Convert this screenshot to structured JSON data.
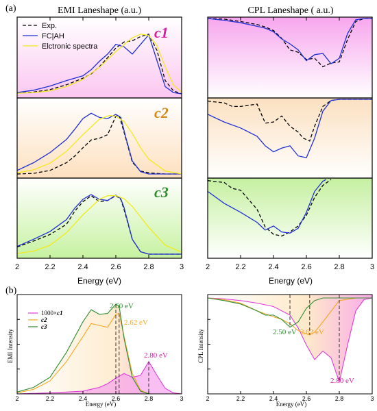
{
  "panel_labels": {
    "a": "(a)",
    "b": "(b)"
  },
  "titles": {
    "emi": "EMI Laneshape (a.u.)",
    "cpl": "CPL Laneshape ( a.u.)"
  },
  "axes": {
    "energy_label": "Energy (eV)",
    "emi_intensity_label": "EMI Intensity",
    "cpl_intensity_label": "CPL Intensity",
    "xticks_top": [
      "2",
      "2.2",
      "2.4",
      "2.6",
      "2.8",
      "3"
    ],
    "xticks_bottom": [
      "2",
      "2.2",
      "2.4",
      "2.6",
      "2.8",
      "3"
    ]
  },
  "legend_a": {
    "exp": "Exp.",
    "fc": "FC|AH",
    "el": "Elctronic spectra"
  },
  "legend_b": {
    "c1": "1000×",
    "c1_suffix": "c1",
    "c2": "c2",
    "c3": "c3"
  },
  "row_labels": {
    "c1": "c1",
    "c2": "c2",
    "c3": "c3"
  },
  "annotations": {
    "emi_c3": "2.60 eV",
    "emi_c2": "2.62 eV",
    "emi_c1": "2.80 eV",
    "cpl_c3": "2.50 eV",
    "cpl_c2": "2.62 eV",
    "cpl_c1": "2.80 eV"
  },
  "colors": {
    "exp": "#000000",
    "fc": "#1f2fd6",
    "el": "#f2ea1c",
    "c1": "#e03ad8",
    "c2": "#f5a623",
    "c3": "#2e8b2e",
    "label_c1": "#d61fa0",
    "label_c2": "#d48a1a",
    "label_c3": "#2e8b2e"
  },
  "chart_data": [
    {
      "type": "line",
      "panel": "a-EMI-c1",
      "xlim": [
        2,
        3
      ],
      "series": [
        {
          "name": "Exp.",
          "x": [
            2.0,
            2.1,
            2.2,
            2.3,
            2.4,
            2.45,
            2.5,
            2.55,
            2.6,
            2.65,
            2.7,
            2.75,
            2.8,
            2.85,
            2.9,
            2.95,
            3.0
          ],
          "y": [
            0.01,
            0.03,
            0.07,
            0.15,
            0.26,
            0.33,
            0.45,
            0.6,
            0.76,
            0.86,
            0.88,
            0.95,
            0.99,
            0.72,
            0.22,
            0.05,
            0.0
          ]
        },
        {
          "name": "FC|AH",
          "x": [
            2.0,
            2.1,
            2.2,
            2.3,
            2.4,
            2.45,
            2.5,
            2.55,
            2.6,
            2.65,
            2.7,
            2.75,
            2.8,
            2.85,
            2.9,
            2.95,
            3.0
          ],
          "y": [
            0.02,
            0.06,
            0.13,
            0.22,
            0.3,
            0.4,
            0.54,
            0.66,
            0.82,
            0.78,
            0.66,
            0.82,
            0.98,
            0.55,
            0.12,
            0.02,
            0.0
          ]
        },
        {
          "name": "Elctronic spectra",
          "x": [
            2.0,
            2.1,
            2.2,
            2.3,
            2.4,
            2.5,
            2.6,
            2.7,
            2.75,
            2.8,
            2.85,
            2.9,
            2.95,
            3.0
          ],
          "y": [
            0.01,
            0.02,
            0.05,
            0.12,
            0.24,
            0.44,
            0.7,
            0.93,
            0.99,
            0.97,
            0.8,
            0.45,
            0.15,
            0.03
          ]
        }
      ]
    },
    {
      "type": "line",
      "panel": "a-EMI-c2",
      "xlim": [
        2,
        3
      ],
      "series": [
        {
          "name": "Exp.",
          "x": [
            2.0,
            2.1,
            2.2,
            2.3,
            2.35,
            2.4,
            2.45,
            2.5,
            2.55,
            2.6,
            2.62,
            2.65,
            2.7,
            2.75,
            2.8,
            2.9,
            3.0
          ],
          "y": [
            0.0,
            0.01,
            0.06,
            0.19,
            0.3,
            0.44,
            0.57,
            0.6,
            0.66,
            0.97,
            0.98,
            0.7,
            0.2,
            0.05,
            0.02,
            0.0,
            0.0
          ]
        },
        {
          "name": "FC|AH",
          "x": [
            2.0,
            2.1,
            2.2,
            2.3,
            2.35,
            2.4,
            2.45,
            2.5,
            2.55,
            2.6,
            2.63,
            2.66,
            2.7,
            2.75,
            2.8,
            2.9,
            3.0
          ],
          "y": [
            0.06,
            0.19,
            0.36,
            0.58,
            0.75,
            0.93,
            1.02,
            0.95,
            0.93,
            1.0,
            0.95,
            0.62,
            0.22,
            0.04,
            0.0,
            0.0,
            0.0
          ]
        },
        {
          "name": "Elctronic spectra",
          "x": [
            2.0,
            2.1,
            2.2,
            2.3,
            2.4,
            2.5,
            2.56,
            2.6,
            2.65,
            2.7,
            2.75,
            2.8,
            2.9,
            3.0
          ],
          "y": [
            0.02,
            0.07,
            0.18,
            0.38,
            0.66,
            0.92,
            0.98,
            0.97,
            0.88,
            0.68,
            0.44,
            0.25,
            0.05,
            0.0
          ]
        }
      ]
    },
    {
      "type": "line",
      "panel": "a-EMI-c3",
      "xlim": [
        2,
        3
      ],
      "series": [
        {
          "name": "Exp.",
          "x": [
            2.0,
            2.1,
            2.2,
            2.3,
            2.35,
            2.4,
            2.45,
            2.5,
            2.55,
            2.6,
            2.63,
            2.65,
            2.7,
            2.75,
            2.8,
            2.9,
            3.0
          ],
          "y": [
            0.12,
            0.22,
            0.33,
            0.5,
            0.72,
            0.88,
            0.98,
            0.88,
            0.9,
            0.98,
            0.92,
            0.75,
            0.25,
            0.04,
            0.0,
            0.0,
            0.0
          ]
        },
        {
          "name": "FC|AH",
          "x": [
            2.0,
            2.1,
            2.2,
            2.3,
            2.35,
            2.4,
            2.45,
            2.5,
            2.55,
            2.6,
            2.63,
            2.65,
            2.7,
            2.75,
            2.8,
            2.9,
            3.0
          ],
          "y": [
            0.13,
            0.25,
            0.38,
            0.58,
            0.77,
            0.92,
            1.0,
            0.92,
            0.9,
            0.99,
            0.93,
            0.78,
            0.25,
            0.04,
            0.0,
            0.0,
            0.0
          ]
        },
        {
          "name": "Elctronic spectra",
          "x": [
            2.0,
            2.1,
            2.2,
            2.3,
            2.4,
            2.5,
            2.55,
            2.6,
            2.65,
            2.7,
            2.8,
            2.9,
            3.0
          ],
          "y": [
            0.01,
            0.05,
            0.15,
            0.36,
            0.66,
            0.92,
            0.98,
            0.98,
            0.93,
            0.8,
            0.45,
            0.15,
            0.03
          ]
        }
      ]
    },
    {
      "type": "line",
      "panel": "a-CPL-c1",
      "xlim": [
        2,
        3
      ],
      "series": [
        {
          "name": "Exp.",
          "x": [
            2.0,
            2.1,
            2.2,
            2.3,
            2.35,
            2.4,
            2.45,
            2.5,
            2.55,
            2.6,
            2.65,
            2.7,
            2.75,
            2.8,
            2.85,
            2.9,
            2.95,
            3.0
          ],
          "y": [
            0.0,
            -0.01,
            -0.05,
            -0.1,
            -0.14,
            -0.2,
            -0.33,
            -0.52,
            -0.56,
            -0.68,
            -0.66,
            -0.8,
            -0.74,
            -0.72,
            -0.35,
            -0.05,
            0.0,
            0.0
          ]
        },
        {
          "name": "FC|AH",
          "x": [
            2.0,
            2.1,
            2.2,
            2.3,
            2.35,
            2.4,
            2.45,
            2.5,
            2.55,
            2.6,
            2.65,
            2.7,
            2.75,
            2.8,
            2.85,
            2.9,
            2.95,
            3.0
          ],
          "y": [
            0.0,
            -0.03,
            -0.07,
            -0.13,
            -0.16,
            -0.22,
            -0.34,
            -0.42,
            -0.52,
            -0.7,
            -0.6,
            -0.58,
            -0.75,
            -0.66,
            -0.25,
            -0.02,
            0.0,
            0.0
          ]
        }
      ]
    },
    {
      "type": "line",
      "panel": "a-CPL-c2",
      "xlim": [
        2,
        3
      ],
      "series": [
        {
          "name": "Exp.",
          "x": [
            2.0,
            2.1,
            2.15,
            2.2,
            2.3,
            2.35,
            2.4,
            2.45,
            2.5,
            2.55,
            2.58,
            2.62,
            2.65,
            2.7,
            2.75,
            2.8,
            3.0
          ],
          "y": [
            -0.03,
            -0.06,
            -0.12,
            -0.12,
            -0.08,
            -0.4,
            -0.38,
            -0.28,
            -0.45,
            -0.55,
            -0.65,
            -0.7,
            -0.45,
            -0.12,
            -0.02,
            0.0,
            0.0
          ]
        },
        {
          "name": "FC|AH",
          "x": [
            2.0,
            2.1,
            2.2,
            2.3,
            2.35,
            2.4,
            2.45,
            2.5,
            2.55,
            2.6,
            2.65,
            2.7,
            2.75,
            2.8,
            3.0
          ],
          "y": [
            -0.25,
            -0.38,
            -0.48,
            -0.62,
            -0.78,
            -0.88,
            -0.82,
            -0.78,
            -0.95,
            -0.98,
            -0.65,
            -0.2,
            -0.02,
            0.0,
            0.0
          ]
        }
      ]
    },
    {
      "type": "line",
      "panel": "a-CPL-c3",
      "xlim": [
        2,
        3
      ],
      "series": [
        {
          "name": "Exp.",
          "x": [
            2.0,
            2.1,
            2.15,
            2.2,
            2.3,
            2.35,
            2.4,
            2.45,
            2.5,
            2.55,
            2.6,
            2.65,
            2.7,
            2.75
          ],
          "y": [
            -0.02,
            -0.05,
            -0.15,
            -0.18,
            -0.5,
            -0.8,
            -0.92,
            -0.95,
            -0.88,
            -0.78,
            -0.6,
            -0.3,
            -0.1,
            0.0
          ]
        },
        {
          "name": "FC|AH",
          "x": [
            2.0,
            2.1,
            2.2,
            2.3,
            2.35,
            2.4,
            2.45,
            2.5,
            2.55,
            2.6,
            2.65,
            2.7,
            2.72
          ],
          "y": [
            -0.2,
            -0.4,
            -0.55,
            -0.72,
            -0.85,
            -0.78,
            -0.88,
            -0.9,
            -0.82,
            -0.55,
            -0.2,
            -0.03,
            0.0
          ]
        }
      ]
    },
    {
      "type": "area",
      "panel": "b-EMI",
      "xlim": [
        2,
        3
      ],
      "xlabel": "Energy (eV)",
      "ylabel": "EMI Intensity",
      "series": [
        {
          "name": "1000×c1",
          "x": [
            2.0,
            2.2,
            2.4,
            2.5,
            2.55,
            2.6,
            2.65,
            2.7,
            2.75,
            2.8,
            2.85,
            2.9,
            2.95,
            3.0
          ],
          "y": [
            0.0,
            0.01,
            0.03,
            0.07,
            0.11,
            0.17,
            0.22,
            0.18,
            0.2,
            0.35,
            0.2,
            0.06,
            0.01,
            0.0
          ]
        },
        {
          "name": "c2",
          "x": [
            2.0,
            2.1,
            2.2,
            2.3,
            2.4,
            2.45,
            2.5,
            2.55,
            2.6,
            2.62,
            2.65,
            2.7,
            2.75,
            2.8,
            3.0
          ],
          "y": [
            0.01,
            0.05,
            0.14,
            0.35,
            0.62,
            0.76,
            0.74,
            0.72,
            0.86,
            0.87,
            0.62,
            0.22,
            0.04,
            0.0,
            0.0
          ]
        },
        {
          "name": "c3",
          "x": [
            2.0,
            2.1,
            2.2,
            2.3,
            2.4,
            2.45,
            2.5,
            2.55,
            2.6,
            2.62,
            2.65,
            2.7,
            2.75,
            2.8,
            3.0
          ],
          "y": [
            0.02,
            0.07,
            0.18,
            0.45,
            0.78,
            0.91,
            0.86,
            0.87,
            0.97,
            0.95,
            0.6,
            0.18,
            0.03,
            0.0,
            0.0
          ]
        }
      ]
    },
    {
      "type": "area",
      "panel": "b-CPL",
      "xlim": [
        2,
        3
      ],
      "xlabel": "Energy (eV)",
      "ylabel": "CPL Intensity",
      "series": [
        {
          "name": "1000×c1",
          "x": [
            2.0,
            2.1,
            2.2,
            2.3,
            2.4,
            2.5,
            2.55,
            2.6,
            2.65,
            2.7,
            2.75,
            2.8,
            2.85,
            2.9,
            2.95,
            3.0
          ],
          "y": [
            0.0,
            -0.01,
            -0.03,
            -0.06,
            -0.1,
            -0.2,
            -0.35,
            -0.55,
            -0.72,
            -0.62,
            -0.7,
            -0.98,
            -0.55,
            -0.15,
            -0.02,
            0.0
          ]
        },
        {
          "name": "c2",
          "x": [
            2.0,
            2.1,
            2.2,
            2.3,
            2.4,
            2.45,
            2.5,
            2.55,
            2.6,
            2.62,
            2.65,
            2.7,
            2.8,
            2.9,
            3.0
          ],
          "y": [
            0.0,
            -0.02,
            -0.06,
            -0.15,
            -0.22,
            -0.25,
            -0.3,
            -0.38,
            -0.42,
            -0.43,
            -0.4,
            -0.28,
            -0.03,
            0.0,
            0.0
          ]
        },
        {
          "name": "c3",
          "x": [
            2.0,
            2.1,
            2.2,
            2.3,
            2.35,
            2.4,
            2.45,
            2.5,
            2.55,
            2.6,
            2.65,
            2.7,
            2.8,
            3.0
          ],
          "y": [
            0.0,
            -0.03,
            -0.07,
            -0.15,
            -0.2,
            -0.2,
            -0.25,
            -0.34,
            -0.28,
            -0.12,
            -0.03,
            0.0,
            0.0,
            0.0
          ]
        }
      ]
    }
  ]
}
